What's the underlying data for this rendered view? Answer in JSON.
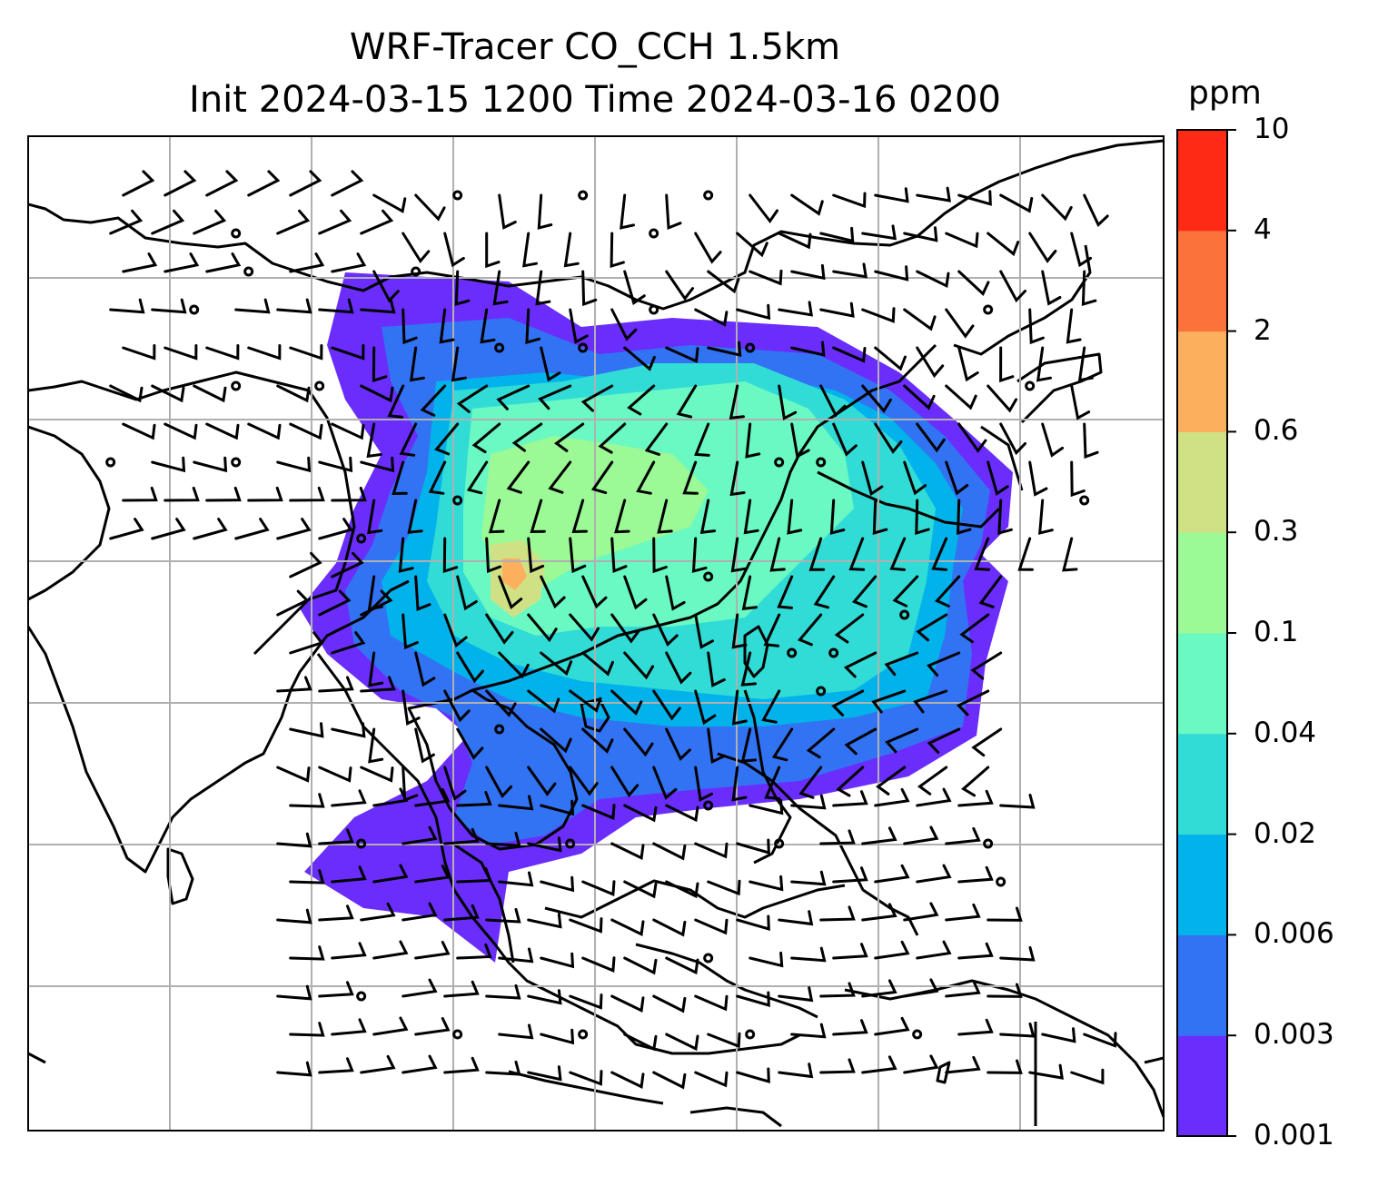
{
  "title": {
    "line1": "WRF-Tracer CO_CCH 1.5km",
    "line2": "Init 2024-03-15 1200 Time 2024-03-16 0200"
  },
  "colorbar": {
    "unit": "ppm",
    "ticks": [
      "0.001",
      "0.003",
      "0.006",
      "0.02",
      "0.04",
      "0.1",
      "0.3",
      "0.6",
      "2",
      "4",
      "10"
    ],
    "colors": [
      "#6a2dfc",
      "#3273f3",
      "#02b2ea",
      "#31dcd6",
      "#6af9c2",
      "#9bf996",
      "#d0e185",
      "#fcb05d",
      "#fc723b",
      "#ff2a16"
    ]
  },
  "colors": {
    "coastline": "#000000",
    "gridline": "#b0b0b0",
    "background": "#ffffff"
  }
}
